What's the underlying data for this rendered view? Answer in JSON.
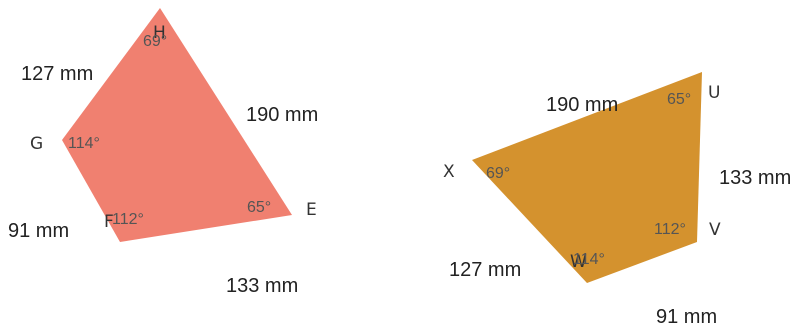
{
  "shapes": [
    {
      "fill": "#f08070",
      "vertices": [
        "H",
        "E",
        "F",
        "G"
      ],
      "angles": [
        "69°",
        "65°",
        "112°",
        "114°"
      ],
      "sides": [
        "127 mm",
        "190 mm",
        "133 mm",
        "91 mm"
      ]
    },
    {
      "fill": "#d4922e",
      "vertices": [
        "U",
        "V",
        "W",
        "X"
      ],
      "angles": [
        "65°",
        "112°",
        "114°",
        "69°"
      ],
      "sides": [
        "190 mm",
        "133 mm",
        "91 mm",
        "127 mm"
      ]
    }
  ]
}
